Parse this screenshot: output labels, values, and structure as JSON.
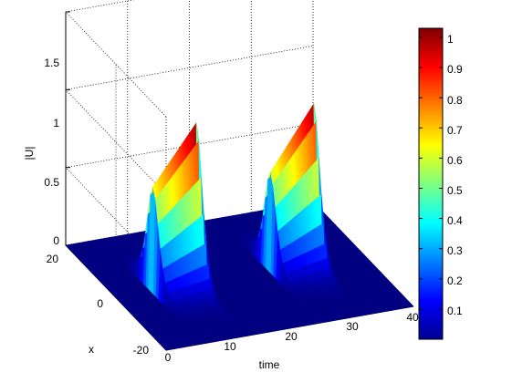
{
  "chart_data": {
    "type": "surface",
    "title": "",
    "xlabel": "time",
    "ylabel": "x",
    "zlabel": "|U|",
    "xlim": [
      0,
      40
    ],
    "ylim": [
      -20,
      20
    ],
    "zlim": [
      0,
      1.5
    ],
    "xticks": [
      "0",
      "10",
      "20",
      "30",
      "40"
    ],
    "yticks": [
      "-20",
      "0",
      "20"
    ],
    "zticks": [
      "0",
      "0.5",
      "1",
      "1.5"
    ],
    "grid": true,
    "colormap": "jet",
    "colorbar": {
      "position": "right",
      "range": [
        0,
        1.03
      ],
      "ticks": [
        "0.1",
        "0.2",
        "0.3",
        "0.4",
        "0.5",
        "0.6",
        "0.7",
        "0.8",
        "0.9",
        "1"
      ]
    },
    "peaks": [
      {
        "time_start": 6,
        "time_end": 13,
        "x_center": 0,
        "amplitude_start": 0.67,
        "amplitude_end": 1.03
      },
      {
        "time_start": 25,
        "time_end": 32,
        "x_center": 0,
        "amplitude_start": 0.63,
        "amplitude_end": 1.02
      }
    ]
  }
}
